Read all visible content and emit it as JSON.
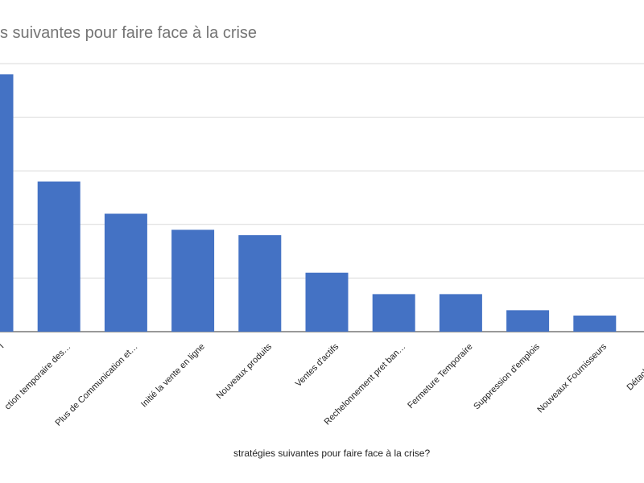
{
  "chart_data": {
    "type": "bar",
    "title": "s suivantes pour faire face à la crise",
    "xlabel": "stratégies suivantes pour faire face à la crise?",
    "ylabel": "",
    "categories": [
      "l",
      "ction temporaire des…",
      "Plus de Communication et…",
      "Initié la vente en ligne",
      "Nouveaux produits",
      "Ventes d'actifs",
      "Rechelonnement pret ban…",
      "Fermeture Temporaire",
      "Suppression d'emplois",
      "Nouveaux Fournisseurs",
      "Détachement d'"
    ],
    "values": [
      48,
      28,
      22,
      19,
      18,
      11,
      7,
      7,
      4,
      3,
      0
    ],
    "ylim": [
      0,
      50
    ],
    "grid": true,
    "legend": "none",
    "bar_color": "#4472c4"
  }
}
